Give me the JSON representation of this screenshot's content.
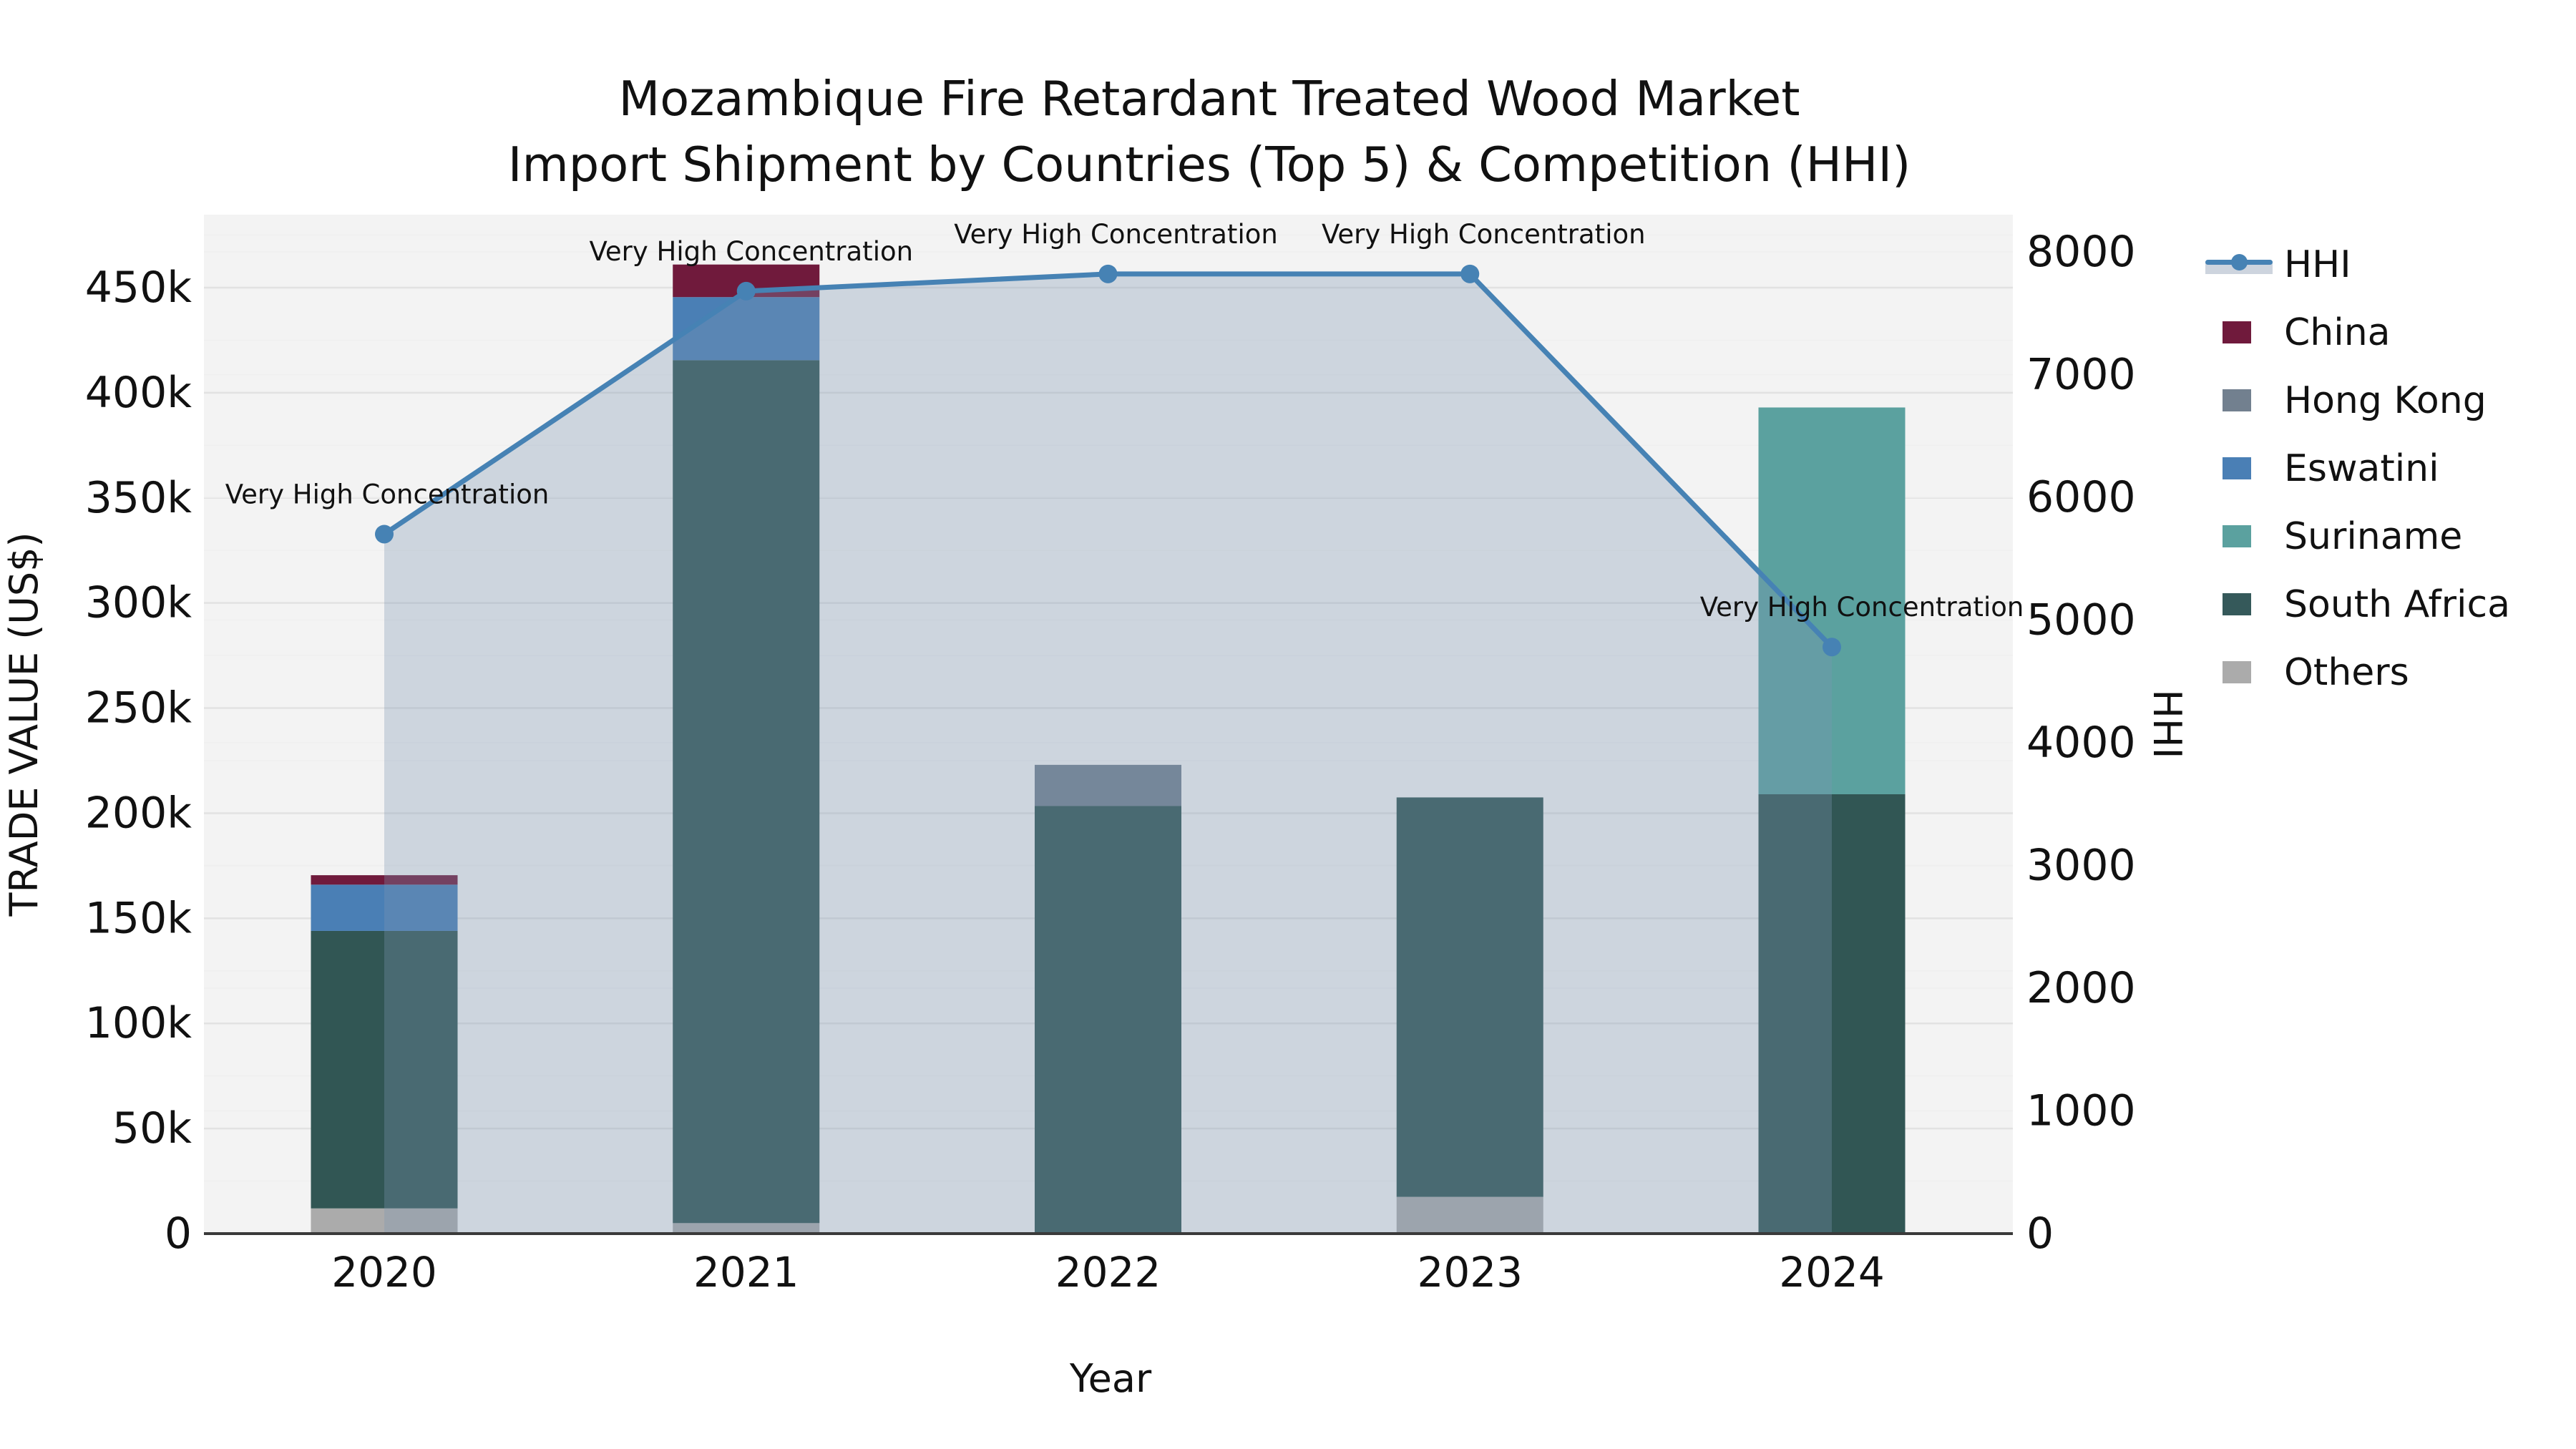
{
  "title": "Mozambique Fire Retardant Treated Wood Market\nImport Shipment by Countries (Top 5) & Competition (HHI)",
  "axes": {
    "x_label": "Year",
    "y_left_label": "TRADE VALUE (US$)",
    "y_right_label": "HHI",
    "y_left_tick_labels": [
      "0",
      "50k",
      "100k",
      "150k",
      "200k",
      "250k",
      "300k",
      "350k",
      "400k",
      "450k"
    ],
    "y_right_tick_labels": [
      "0",
      "1000",
      "2000",
      "3000",
      "4000",
      "5000",
      "6000",
      "7000",
      "8000"
    ]
  },
  "legend": {
    "items": [
      {
        "label": "HHI",
        "type": "line",
        "color": "#4682b4"
      },
      {
        "label": "China",
        "type": "patch",
        "color": "#701a3c"
      },
      {
        "label": "Hong Kong",
        "type": "patch",
        "color": "#72808f"
      },
      {
        "label": "Eswatini",
        "type": "patch",
        "color": "#4a7fb5"
      },
      {
        "label": "Suriname",
        "type": "patch",
        "color": "#5ba19f"
      },
      {
        "label": "South Africa",
        "type": "patch",
        "color": "#35595a"
      },
      {
        "label": "Others",
        "type": "patch",
        "color": "#ababab"
      }
    ]
  },
  "chart_data": {
    "type": "bar",
    "subtype": "stacked-bars-with-line",
    "title": "Mozambique Fire Retardant Treated Wood Market Import Shipment by Countries (Top 5) & Competition (HHI)",
    "xlabel": "Year",
    "ylabel_left": "TRADE VALUE (US$)",
    "ylabel_right": "HHI",
    "categories": [
      "2020",
      "2021",
      "2022",
      "2023",
      "2024"
    ],
    "ylim_left": [
      0,
      485000
    ],
    "ylim_right": [
      0,
      8300
    ],
    "grid": true,
    "legend_position": "right",
    "stack_order_bottom_to_top": [
      "Others",
      "South Africa",
      "Suriname",
      "Eswatini",
      "Hong Kong",
      "China"
    ],
    "series": [
      {
        "name": "China",
        "color": "#701a3c",
        "values": [
          4500,
          15500,
          0,
          0,
          0
        ]
      },
      {
        "name": "Hong Kong",
        "color": "#72808f",
        "values": [
          0,
          0,
          19500,
          0,
          0
        ]
      },
      {
        "name": "Eswatini",
        "color": "#4a7fb5",
        "values": [
          22000,
          30000,
          0,
          0,
          0
        ]
      },
      {
        "name": "Suriname",
        "color": "#5ba19f",
        "values": [
          0,
          0,
          0,
          0,
          184000
        ]
      },
      {
        "name": "South Africa",
        "color": "#315654",
        "values": [
          132000,
          410500,
          203500,
          190000,
          209000
        ]
      },
      {
        "name": "Others",
        "color": "#ababab",
        "values": [
          12000,
          5000,
          0,
          17500,
          0
        ]
      }
    ],
    "bar_totals": [
      170500,
      461000,
      223000,
      207500,
      393000
    ],
    "line_series": {
      "name": "HHI",
      "color": "#4682b4",
      "area_fill": "rgba(125,148,178,0.32)",
      "values": [
        5700,
        7680,
        7820,
        7820,
        4780
      ]
    },
    "annotations": [
      {
        "x": "2020",
        "text": "Very High Concentration"
      },
      {
        "x": "2021",
        "text": "Very High Concentration"
      },
      {
        "x": "2022",
        "text": "Very High Concentration"
      },
      {
        "x": "2023",
        "text": "Very High Concentration"
      },
      {
        "x": "2024",
        "text": "Very High Concentration"
      }
    ],
    "colors": {
      "plot_background": "#f3f3f3",
      "page_background": "#ffffff",
      "grid_major": "#e2e2e2",
      "grid_minor": "#efefef",
      "axis_spine": "#3a3a3a",
      "text": "#111111"
    }
  }
}
